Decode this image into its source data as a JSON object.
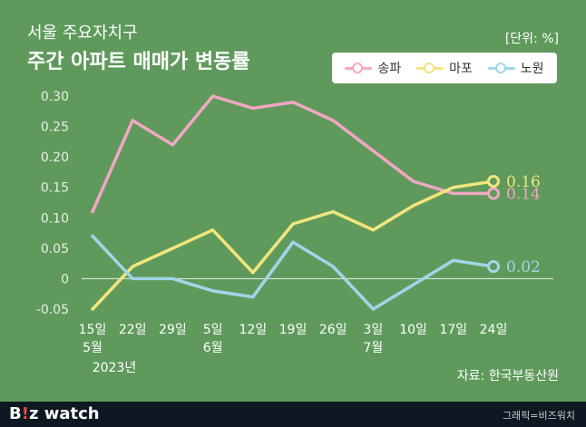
{
  "header": {
    "title_line1": "서울 주요자치구",
    "title_line2": "주간 아파트 매매가 변동률",
    "unit": "[단위: %]"
  },
  "source": "자료: 한국부동산원",
  "footer": {
    "brand_b": "B",
    "brand_accent": "!",
    "brand_z": "z",
    "brand_rest": " watch",
    "credit": "그래픽=비즈워치"
  },
  "colors": {
    "background": "#5f9a5c",
    "songpa": "#f2a7c3",
    "mapo": "#f2e57d",
    "nowon": "#9fd6e8"
  },
  "chart_data": {
    "type": "line",
    "x": [
      "15일",
      "22일",
      "29일",
      "5일",
      "12일",
      "19일",
      "26일",
      "3일",
      "10일",
      "17일",
      "24일"
    ],
    "x_sublabels": [
      "5월",
      "",
      "",
      "6월",
      "",
      "",
      "",
      "7월",
      "",
      "",
      ""
    ],
    "x_year_label": "2023년",
    "ylim": [
      -0.05,
      0.3
    ],
    "yticks": [
      "0.30",
      "0.25",
      "0.20",
      "0.15",
      "0.10",
      "0.05",
      "0",
      "-0.05"
    ],
    "ytick_values": [
      0.3,
      0.25,
      0.2,
      0.15,
      0.1,
      0.05,
      0,
      -0.05
    ],
    "grid": false,
    "legend": "top-right",
    "series": [
      {
        "name": "송파",
        "color": "#f2a7c3",
        "values": [
          0.11,
          0.26,
          0.22,
          0.3,
          0.28,
          0.29,
          0.26,
          0.21,
          0.16,
          0.14,
          0.14
        ],
        "end_label": "0.14"
      },
      {
        "name": "마포",
        "color": "#f2e57d",
        "values": [
          -0.05,
          0.02,
          0.05,
          0.08,
          0.01,
          0.09,
          0.11,
          0.08,
          0.12,
          0.15,
          0.16
        ],
        "end_label": "0.16"
      },
      {
        "name": "노원",
        "color": "#9fd6e8",
        "values": [
          0.07,
          0.0,
          0.0,
          -0.02,
          -0.03,
          0.06,
          0.02,
          -0.05,
          -0.01,
          0.03,
          0.02
        ],
        "end_label": "0.02"
      }
    ]
  }
}
